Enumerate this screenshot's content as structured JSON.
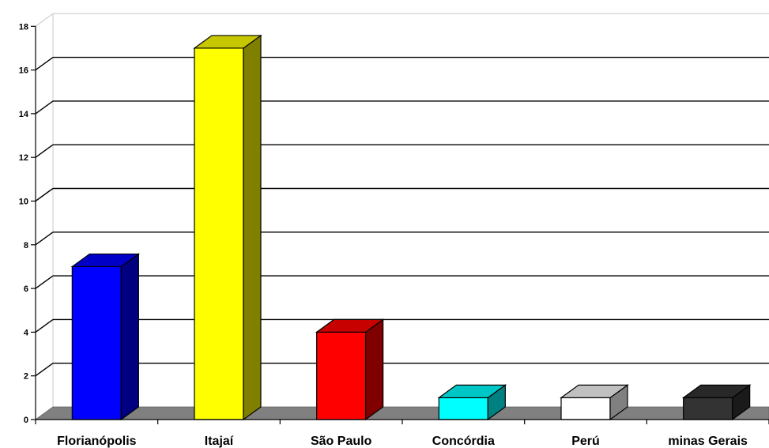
{
  "chart_data": {
    "type": "bar",
    "style": "3d-column",
    "categories": [
      "Florianópolis",
      "Itajaí",
      "São Paulo",
      "Concórdia",
      "Perú",
      "minas Gerais"
    ],
    "values": [
      7,
      17,
      4,
      1,
      1,
      1
    ],
    "colors": [
      "#0000ff",
      "#ffff00",
      "#ff0000",
      "#00ffff",
      "#ffffff",
      "#333333"
    ],
    "yticks": [
      0,
      2,
      4,
      6,
      8,
      10,
      12,
      14,
      16,
      18
    ],
    "ylim": [
      0,
      18
    ],
    "grid": true,
    "floor_color": "#808080",
    "title": "",
    "xlabel": "",
    "ylabel": ""
  }
}
